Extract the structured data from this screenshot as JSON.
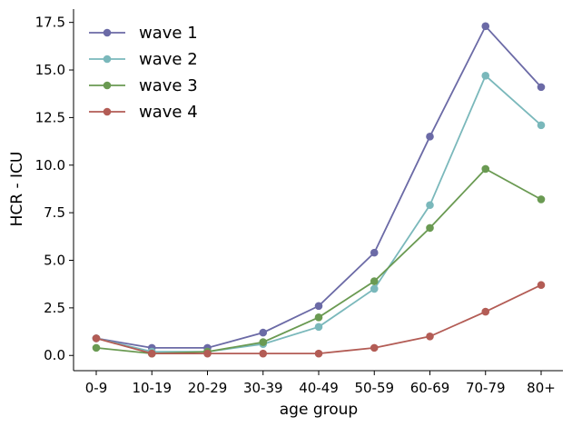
{
  "chart_data": {
    "type": "line",
    "categories": [
      "0-9",
      "10-19",
      "20-29",
      "30-39",
      "40-49",
      "50-59",
      "60-69",
      "70-79",
      "80+"
    ],
    "xlabel": "age group",
    "ylabel": "HCR - ICU",
    "ylim": [
      -0.8,
      18.2
    ],
    "yticks": [
      0.0,
      2.5,
      5.0,
      7.5,
      10.0,
      12.5,
      15.0,
      17.5
    ],
    "ytick_labels": [
      "0.0",
      "2.5",
      "5.0",
      "7.5",
      "10.0",
      "12.5",
      "15.0",
      "17.5"
    ],
    "grid": false,
    "legend_position": "top-left",
    "series": [
      {
        "name": "wave 1",
        "color": "#6b6aa6",
        "values": [
          0.9,
          0.4,
          0.4,
          1.2,
          2.6,
          5.4,
          11.5,
          17.3,
          14.1
        ]
      },
      {
        "name": "wave 2",
        "color": "#7ab8bb",
        "values": [
          0.9,
          0.2,
          0.2,
          0.6,
          1.5,
          3.5,
          7.9,
          14.7,
          12.1
        ]
      },
      {
        "name": "wave 3",
        "color": "#6a9a52",
        "values": [
          0.4,
          0.1,
          0.2,
          0.7,
          2.0,
          3.9,
          6.7,
          9.8,
          8.2
        ]
      },
      {
        "name": "wave 4",
        "color": "#b35c55",
        "values": [
          0.9,
          0.1,
          0.1,
          0.1,
          0.1,
          0.4,
          1.0,
          2.3,
          3.7
        ]
      }
    ]
  }
}
